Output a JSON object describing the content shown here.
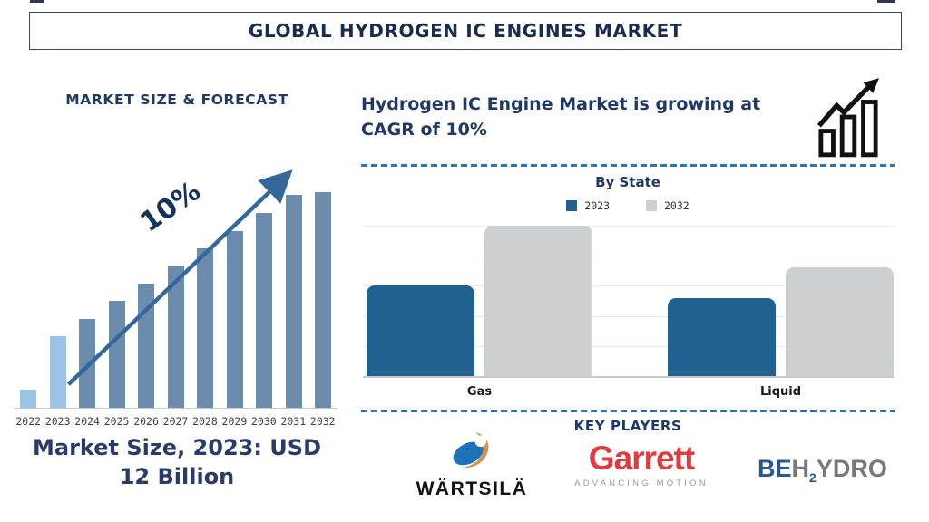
{
  "page_title": "GLOBAL HYDROGEN IC ENGINES MARKET",
  "left_panel": {
    "heading": "MARKET SIZE & FORECAST",
    "growth_annotation": "10%",
    "caption": "Market Size, 2023: USD 12 Billion"
  },
  "right_panel": {
    "headline": "Hydrogen IC Engine Market is growing at CAGR of 10%",
    "chart_title": "By State",
    "key_players_heading": "KEY PLAYERS",
    "logos": {
      "wartsila_text": "WÄRTSILÄ",
      "garrett_text": "Garrett",
      "garrett_tagline": "ADVANCING MOTION",
      "behydro_be": "BE",
      "behydro_h": "H",
      "behydro_sub": "2",
      "behydro_ydro": "YDRO"
    }
  },
  "colors": {
    "heading_navy": "#1F3864",
    "caption_navy": "#2B3A67",
    "dashed_line_blue": "#2E74B5",
    "forecast_bar": "#6B8CAC",
    "forecast_bar_highlight": "#9CC2E5",
    "arrow_blue": "#35689A",
    "bystate_2023_blue": "#20618F",
    "bystate_2032_gray": "#CDCFD1",
    "garrett_red": "#E03C40",
    "wartsila_blue": "#1E72B8",
    "wartsila_orange": "#CE9455",
    "behydro_blue": "#27598E",
    "behydro_gray": "#77787B",
    "icon_black": "#111111"
  },
  "chart_data": [
    {
      "type": "bar",
      "title": "MARKET SIZE & FORECAST",
      "categories": [
        "2022",
        "2023",
        "2024",
        "2025",
        "2026",
        "2027",
        "2028",
        "2029",
        "2030",
        "2031",
        "2032"
      ],
      "values": [
        20,
        79,
        98,
        118,
        137,
        157,
        176,
        195,
        215,
        235,
        238
      ],
      "values_note": "relative bar heights (px); no value axis labels shown in source",
      "annotation": "10%",
      "highlight_categories": [
        "2022",
        "2023"
      ],
      "caption": "Market Size, 2023: USD 12 Billion",
      "xlabel": "",
      "ylabel": "",
      "grid": false,
      "legend_position": "none"
    },
    {
      "type": "bar",
      "title": "By State",
      "categories": [
        "Gas",
        "Liquid"
      ],
      "series": [
        {
          "name": "2023",
          "values": [
            3.0,
            2.6
          ]
        },
        {
          "name": "2032",
          "values": [
            5.0,
            3.6
          ]
        }
      ],
      "values_note": "relative units estimated from gridlines; no value axis labels shown",
      "ylim": [
        0,
        5
      ],
      "grid": true,
      "legend_position": "top"
    }
  ]
}
